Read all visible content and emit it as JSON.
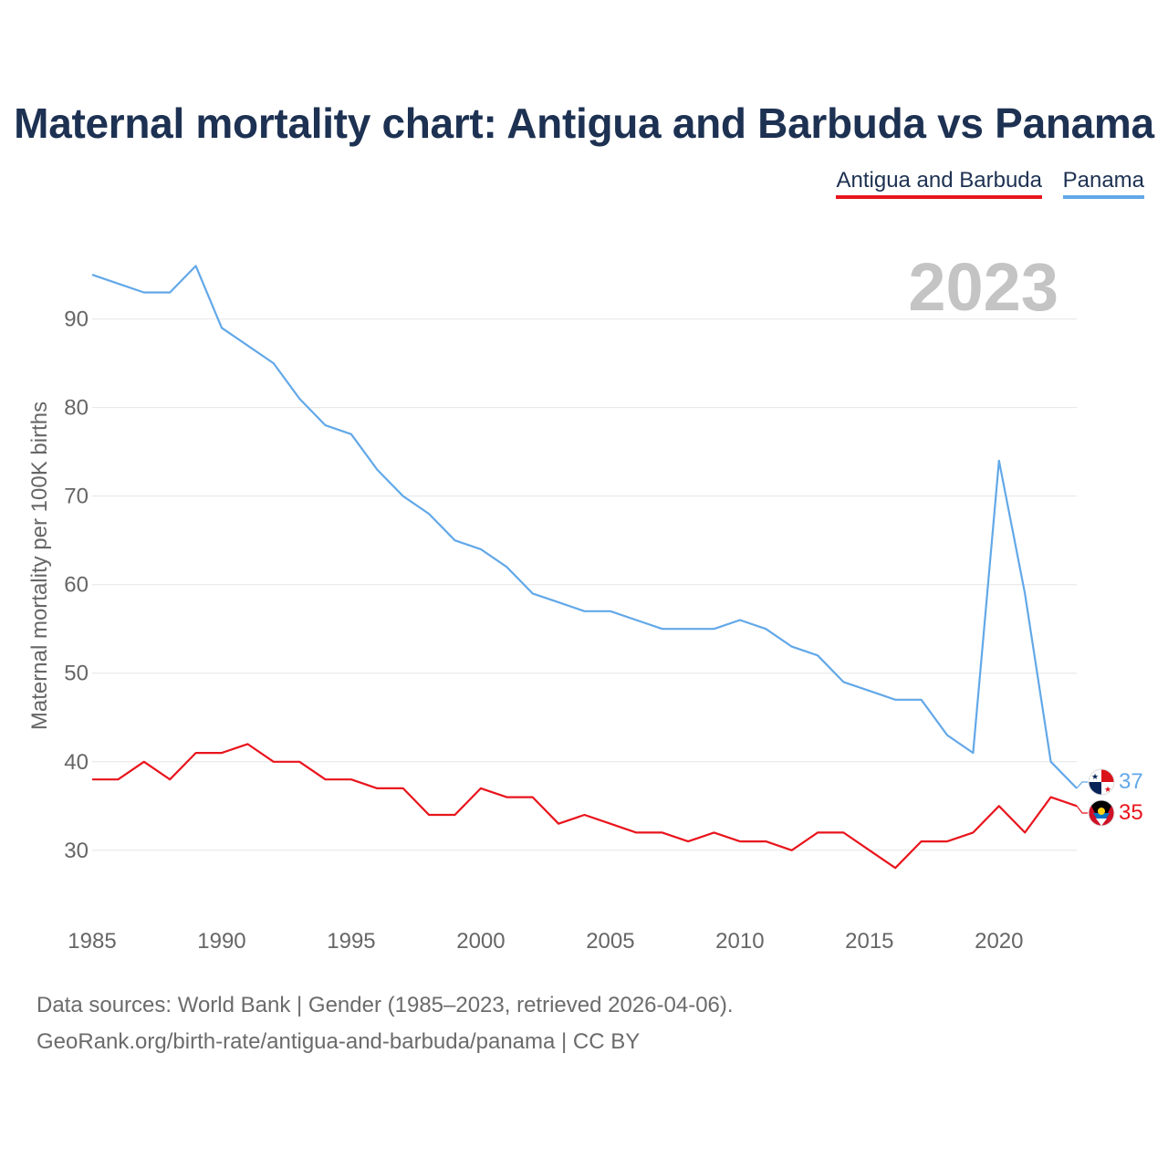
{
  "colors": {
    "antigua": "#e8141c",
    "panama": "#62a8e8",
    "title": "#1d3152",
    "grid": "#e6e6e6",
    "axis_text": "#666666",
    "year_watermark": "#c4c4c4"
  },
  "chart_data": {
    "type": "line",
    "title": "Maternal mortality chart: Antigua and Barbuda vs Panama",
    "ylabel": "Maternal mortality per 100K births",
    "xlabel": "",
    "year_label": "2023",
    "xlim": [
      1985,
      2023
    ],
    "ylim": [
      24,
      98
    ],
    "yticks": [
      30,
      40,
      50,
      60,
      70,
      80,
      90
    ],
    "xticks": [
      1985,
      1990,
      1995,
      2000,
      2005,
      2010,
      2015,
      2020
    ],
    "grid": true,
    "legend_position": "top-right",
    "x": [
      1985,
      1986,
      1987,
      1988,
      1989,
      1990,
      1991,
      1992,
      1993,
      1994,
      1995,
      1996,
      1997,
      1998,
      1999,
      2000,
      2001,
      2002,
      2003,
      2004,
      2005,
      2006,
      2007,
      2008,
      2009,
      2010,
      2011,
      2012,
      2013,
      2014,
      2015,
      2016,
      2017,
      2018,
      2019,
      2020,
      2021,
      2022,
      2023
    ],
    "series": [
      {
        "name": "Antigua and Barbuda",
        "color": "#e8141c",
        "end_label": "35",
        "flag_icon": "antigua-flag-icon",
        "values": [
          38,
          38,
          40,
          38,
          41,
          41,
          42,
          40,
          40,
          38,
          38,
          37,
          37,
          34,
          34,
          37,
          36,
          36,
          33,
          34,
          33,
          32,
          32,
          31,
          32,
          31,
          31,
          30,
          32,
          32,
          30,
          28,
          31,
          31,
          32,
          35,
          32,
          36,
          35
        ]
      },
      {
        "name": "Panama",
        "color": "#62a8e8",
        "end_label": "37",
        "flag_icon": "panama-flag-icon",
        "values": [
          95,
          94,
          93,
          93,
          96,
          89,
          87,
          85,
          81,
          78,
          77,
          73,
          70,
          68,
          65,
          64,
          62,
          59,
          58,
          57,
          57,
          56,
          55,
          55,
          55,
          56,
          55,
          53,
          52,
          49,
          48,
          47,
          47,
          43,
          41,
          74,
          59,
          40,
          37
        ]
      }
    ]
  },
  "sources": {
    "line1": "Data sources: World Bank | Gender (1985–2023, retrieved 2026-04-06).",
    "line2": "GeoRank.org/birth-rate/antigua-and-barbuda/panama | CC BY"
  }
}
